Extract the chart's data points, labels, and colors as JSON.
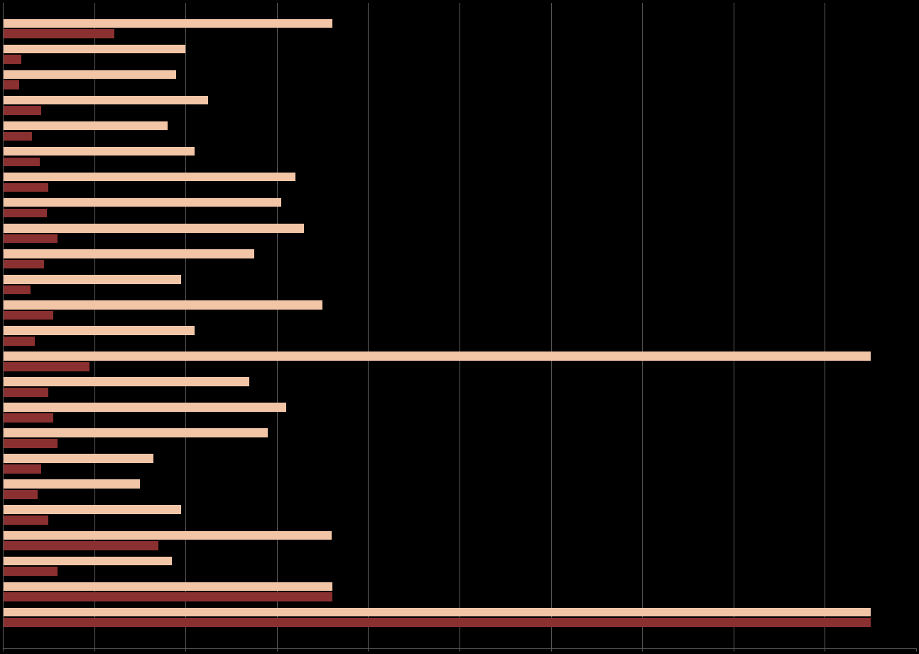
{
  "background_color": "#000000",
  "bar_color_1": "#f2c5a7",
  "bar_color_2": "#8b3030",
  "bar_height": 0.35,
  "series1": [
    36081,
    20000,
    19000,
    22500,
    18000,
    21000,
    32000,
    30500,
    33000,
    27500,
    19500,
    35000,
    21000,
    95000,
    27000,
    31000,
    29000,
    16500,
    15000,
    19500,
    36000,
    18500,
    36081,
    95000
  ],
  "series2": [
    12173,
    2000,
    1800,
    4200,
    3200,
    4000,
    5000,
    4800,
    6000,
    4500,
    3000,
    5500,
    3500,
    9500,
    5000,
    5500,
    6000,
    4200,
    3800,
    5000,
    17000,
    6000,
    36081,
    95000
  ],
  "xlim_max": 100000,
  "n_rows": 24,
  "grid_color": "#555555",
  "grid_n": 10
}
